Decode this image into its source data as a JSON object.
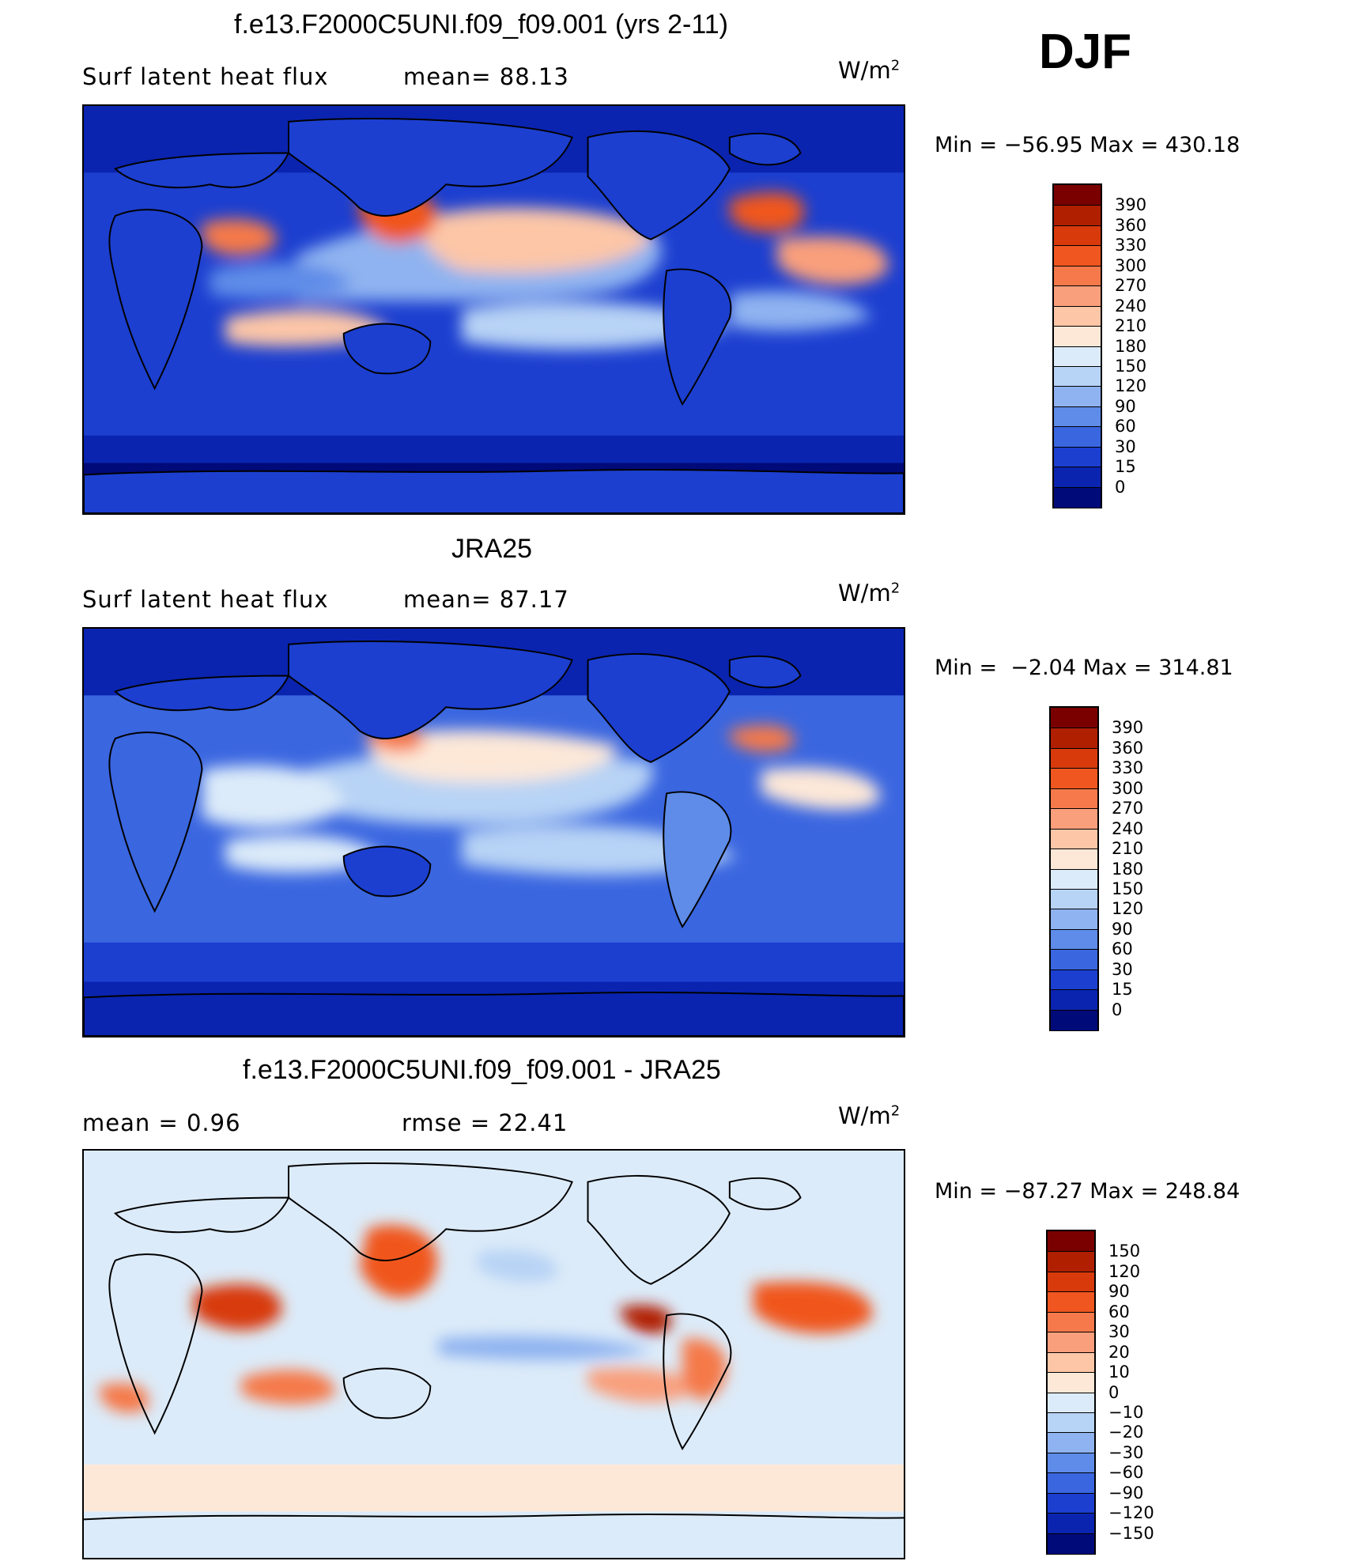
{
  "season": "DJF",
  "units_prefix": "W/m",
  "units_exponent": "2",
  "panels": [
    {
      "title": "f.e13.F2000C5UNI.f09_f09.001 (yrs 2-11)",
      "left_text": "Surf latent heat flux",
      "right_text": "mean=  88.13",
      "minmax": "Min = −56.95 Max = 430.18",
      "scale": "absolute"
    },
    {
      "title": "JRA25",
      "left_text": "Surf latent heat flux",
      "right_text": "mean=  87.17",
      "minmax": "Min =  −2.04 Max = 314.81",
      "scale": "absolute"
    },
    {
      "title": "f.e13.F2000C5UNI.f09_f09.001 - JRA25",
      "left_text": "mean =    0.96",
      "right_text": "rmse =   22.41",
      "minmax": "Min = −87.27 Max = 248.84",
      "scale": "difference"
    }
  ],
  "colorbars": {
    "absolute": {
      "labels": [
        "390",
        "360",
        "330",
        "300",
        "270",
        "240",
        "210",
        "180",
        "150",
        "120",
        "90",
        "60",
        "30",
        "15",
        "0"
      ],
      "colors": [
        "#7a0000",
        "#b01f00",
        "#d83a0c",
        "#f0561f",
        "#f5794a",
        "#f99f7c",
        "#fcc6a7",
        "#fde8d8",
        "#dcebf9",
        "#b7d3f5",
        "#8fb3f0",
        "#5e8ce8",
        "#3a66e0",
        "#1c3fd0",
        "#0a24b0",
        "#000a78"
      ]
    },
    "difference": {
      "labels": [
        "150",
        "120",
        "90",
        "60",
        "30",
        "20",
        "10",
        "0",
        "−10",
        "−20",
        "−30",
        "−60",
        "−90",
        "−120",
        "−150"
      ],
      "colors": [
        "#7a0000",
        "#b01f00",
        "#d83a0c",
        "#f0561f",
        "#f5794a",
        "#f99f7c",
        "#fcc6a7",
        "#fde8d8",
        "#dcebf9",
        "#b7d3f5",
        "#8fb3f0",
        "#5e8ce8",
        "#3a66e0",
        "#1c3fd0",
        "#0a24b0",
        "#000a78"
      ]
    }
  }
}
